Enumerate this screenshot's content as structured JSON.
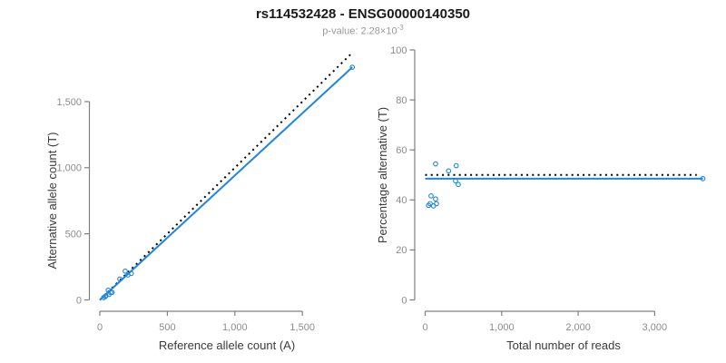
{
  "header": {
    "title": "rs114532428 - ENSG00000140350",
    "subtitle_base": "p-value: 2.28×10",
    "subtitle_exponent": "-3"
  },
  "colors": {
    "accent_blue": "#1E85E2",
    "identity_black": "#000000",
    "axis_line": "#7F7F7F",
    "tick_label": "#8C8C8C",
    "axis_title": "#3A3A3A",
    "title_color": "#1A1A1A",
    "subtitle_gray": "#9A9A9A",
    "background": "#FFFFFF"
  },
  "chart_data": [
    {
      "type": "scatter",
      "name": "allele-count-plot",
      "title": "rs114532428 - ENSG00000140350",
      "subtitle": "p-value: 2.28×10^-3",
      "xlabel": "Reference allele count (A)",
      "ylabel": "Alternative allele count (T)",
      "xlim": [
        0,
        1900
      ],
      "ylim": [
        0,
        1900
      ],
      "xticks": [
        0,
        500,
        1000,
        1500
      ],
      "xtick_labels": [
        "0",
        "500",
        "1,000",
        "1,500"
      ],
      "yticks": [
        0,
        500,
        1000,
        1500
      ],
      "ytick_labels": [
        "0",
        "500",
        "1,000",
        "1,500"
      ],
      "grid": false,
      "legend": "none",
      "marker": "open-circle",
      "points": [
        [
          28,
          17
        ],
        [
          40,
          25
        ],
        [
          45,
          32
        ],
        [
          68,
          41
        ],
        [
          81,
          55
        ],
        [
          91,
          57
        ],
        [
          62,
          74
        ],
        [
          148,
          158
        ],
        [
          188,
          218
        ],
        [
          208,
          189
        ],
        [
          233,
          200
        ],
        [
          1870,
          1760
        ]
      ],
      "lines": [
        {
          "name": "fit-line",
          "style": "solid",
          "color": "#1E85E2",
          "x1": 0,
          "y1": 0,
          "x2": 1870,
          "y2": 1760
        },
        {
          "name": "identity-line",
          "style": "dotted",
          "color": "#000000",
          "x1": 0,
          "y1": 0,
          "x2": 1860,
          "y2": 1860
        }
      ]
    },
    {
      "type": "scatter",
      "name": "percentage-plot",
      "xlabel": "Total number of reads",
      "ylabel": "Percentage alternative (T)",
      "xlim": [
        0,
        3650
      ],
      "ylim": [
        0,
        100
      ],
      "xticks": [
        0,
        1000,
        2000,
        3000
      ],
      "xtick_labels": [
        "0",
        "1,000",
        "2,000",
        "3,000"
      ],
      "yticks": [
        0,
        20,
        40,
        60,
        80,
        100
      ],
      "ytick_labels": [
        "0",
        "20",
        "40",
        "60",
        "80",
        "100"
      ],
      "grid": false,
      "legend": "none",
      "marker": "open-circle",
      "points": [
        [
          45,
          37.8
        ],
        [
          65,
          38.5
        ],
        [
          77,
          41.6
        ],
        [
          109,
          37.6
        ],
        [
          136,
          40.4
        ],
        [
          148,
          38.5
        ],
        [
          136,
          54.4
        ],
        [
          306,
          51.6
        ],
        [
          406,
          53.7
        ],
        [
          397,
          47.6
        ],
        [
          433,
          46.2
        ],
        [
          3630,
          48.5
        ]
      ],
      "lines": [
        {
          "name": "mean-percentage-line",
          "style": "solid",
          "color": "#1E85E2",
          "x1": 0,
          "y1": 48.5,
          "x2": 3630,
          "y2": 48.5
        },
        {
          "name": "expected-50-percent-line",
          "style": "dotted",
          "color": "#000000",
          "x1": 0,
          "y1": 50,
          "x2": 3550,
          "y2": 50
        }
      ]
    }
  ]
}
